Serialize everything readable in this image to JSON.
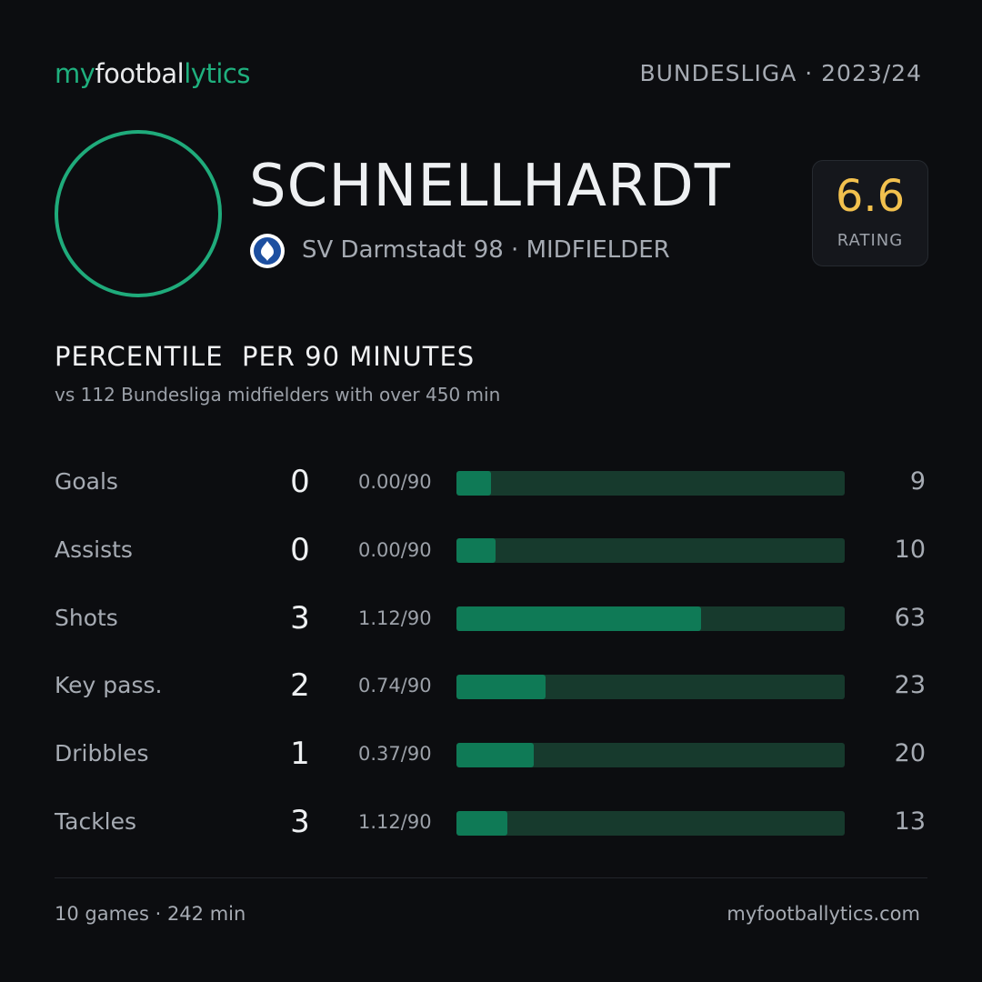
{
  "header": {
    "logo": [
      "my",
      "footbal",
      "lytics"
    ],
    "league": "BUNDESLIGA · 2023/24"
  },
  "player": {
    "name": "SCHNELLHARDT",
    "club_line": "SV Darmstadt 98 · MIDFIELDER",
    "rating": 6.6,
    "rating_label": "RATING"
  },
  "section": {
    "title": "PERCENTILE  PER 90 MINUTES",
    "subtitle": "vs 112 Bundesliga midfielders with over 450 min"
  },
  "stats": {
    "xlim": [
      0,
      100
    ],
    "rows": [
      {
        "label": "Goals",
        "total": 0,
        "per90": "0.00/90",
        "percentile": 9
      },
      {
        "label": "Assists",
        "total": 0,
        "per90": "0.00/90",
        "percentile": 10
      },
      {
        "label": "Shots",
        "total": 3,
        "per90": "1.12/90",
        "percentile": 63
      },
      {
        "label": "Key pass.",
        "total": 2,
        "per90": "0.74/90",
        "percentile": 23
      },
      {
        "label": "Dribbles",
        "total": 1,
        "per90": "0.37/90",
        "percentile": 20
      },
      {
        "label": "Tackles",
        "total": 3,
        "per90": "1.12/90",
        "percentile": 13
      }
    ]
  },
  "footer": {
    "summary": "10 games · 242 min",
    "site": "myfootballytics.com"
  }
}
